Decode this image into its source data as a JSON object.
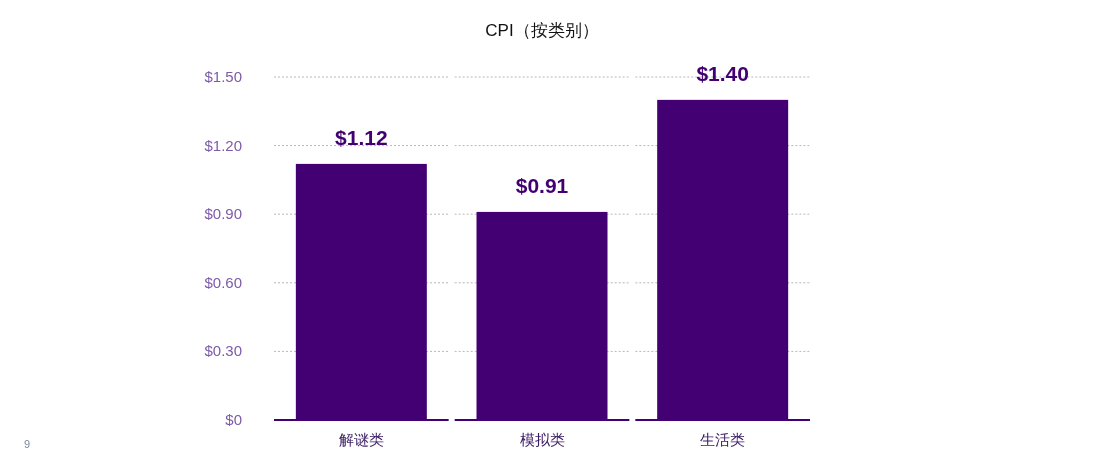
{
  "chart_data": {
    "type": "bar",
    "title": "CPI（按类别）",
    "categories": [
      "解谜类",
      "模拟类",
      "生活类"
    ],
    "values": [
      1.12,
      0.91,
      1.4
    ],
    "value_labels": [
      "$1.12",
      "$0.91",
      "$1.40"
    ],
    "color": "#430073",
    "ylim": [
      0,
      1.5
    ],
    "yticks": [
      {
        "value": 0,
        "label": "$0"
      },
      {
        "value": 0.3,
        "label": "$0.30"
      },
      {
        "value": 0.6,
        "label": "$0.60"
      },
      {
        "value": 0.9,
        "label": "$0.90"
      },
      {
        "value": 1.2,
        "label": "$1.20"
      },
      {
        "value": 1.5,
        "label": "$1.50"
      }
    ],
    "grid": "y",
    "annotations": [
      "9"
    ]
  }
}
